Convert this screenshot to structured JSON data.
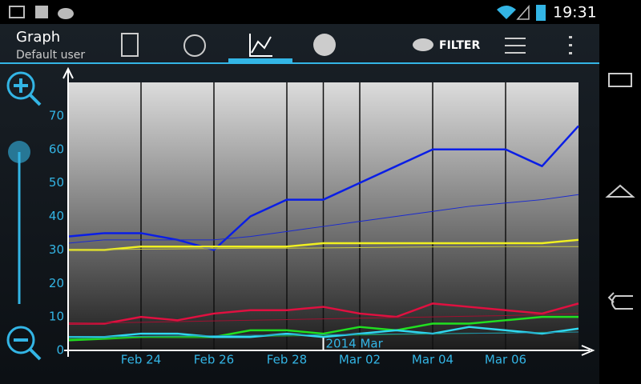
{
  "status_bar": {
    "time": "19:31"
  },
  "action_bar": {
    "title": "Graph",
    "subtitle": "Default user",
    "filter": "FILTER"
  },
  "chart_data": {
    "type": "line",
    "x": [
      "2014-02-22",
      "2014-02-23",
      "2014-02-24",
      "2014-02-25",
      "2014-02-26",
      "2014-02-27",
      "2014-02-28",
      "2014-03-01",
      "2014-03-02",
      "2014-03-03",
      "2014-03-04",
      "2014-03-05",
      "2014-03-06",
      "2014-03-07",
      "2014-03-08"
    ],
    "series": [
      {
        "color": "#0a1ee6",
        "width": 2.5,
        "values": [
          34,
          35,
          35,
          33,
          30,
          40,
          45,
          45,
          50,
          55,
          60,
          60,
          60,
          55,
          67
        ]
      },
      {
        "color": "#1a2ad0",
        "width": 1,
        "values": [
          32,
          33,
          33,
          33,
          33,
          34,
          35.5,
          37,
          38.5,
          40,
          41.5,
          43,
          44,
          45,
          46.5
        ]
      },
      {
        "color": "#f0f020",
        "width": 2.5,
        "values": [
          30,
          30,
          31,
          31,
          31,
          31,
          31,
          32,
          32,
          32,
          32,
          32,
          32,
          32,
          33
        ]
      },
      {
        "color": "#c8c840",
        "width": 1,
        "values": [
          30,
          30.1,
          30.2,
          30.3,
          30.4,
          30.5,
          30.5,
          30.6,
          30.7,
          30.8,
          30.9,
          30.9,
          31,
          31,
          31
        ]
      },
      {
        "color": "#e01040",
        "width": 2.5,
        "values": [
          8,
          8,
          10,
          9,
          11,
          12,
          12,
          13,
          11,
          10,
          14,
          13,
          12,
          11,
          14
        ]
      },
      {
        "color": "#a01030",
        "width": 1,
        "values": [
          8,
          8.2,
          8.4,
          8.6,
          8.8,
          9,
          9.2,
          9.4,
          9.6,
          9.8,
          10,
          10.2,
          10.4,
          10.7,
          11
        ]
      },
      {
        "color": "#20e020",
        "width": 2.5,
        "values": [
          3,
          3.5,
          4,
          4,
          4,
          6,
          6,
          5,
          7,
          6,
          8,
          8,
          9,
          10,
          10
        ]
      },
      {
        "color": "#20a020",
        "width": 1,
        "values": [
          3.5,
          3.6,
          3.8,
          3.9,
          4,
          4.2,
          4.3,
          4.5,
          4.6,
          4.8,
          4.9,
          5.1,
          5.2,
          5.4,
          5.5
        ]
      },
      {
        "color": "#30d8f0",
        "width": 2.5,
        "values": [
          4,
          4,
          5,
          5,
          4,
          4,
          5,
          4,
          5,
          6,
          5,
          7,
          6,
          5,
          6.5
        ]
      },
      {
        "color": "#2090b0",
        "width": 1,
        "values": [
          4,
          4.1,
          4.2,
          4.3,
          4.4,
          4.5,
          4.6,
          4.7,
          4.8,
          4.9,
          5,
          5.1,
          5.2,
          5.3,
          5.5
        ]
      }
    ],
    "xlim": [
      "2014-02-22",
      "2014-03-08"
    ],
    "xticks": [
      {
        "value": "2014-02-24",
        "label": "Feb 24"
      },
      {
        "value": "2014-02-26",
        "label": "Feb 26"
      },
      {
        "value": "2014-02-28",
        "label": "Feb 28"
      },
      {
        "value": "2014-03-02",
        "label": "Mar 02"
      },
      {
        "value": "2014-03-04",
        "label": "Mar 04"
      },
      {
        "value": "2014-03-06",
        "label": "Mar 06"
      }
    ],
    "ylim": [
      0,
      80
    ],
    "yticks": [
      0,
      10,
      20,
      30,
      40,
      50,
      60,
      70
    ],
    "grid": "x",
    "annotation": {
      "text": "2014 Mar",
      "x": "2014-03-01"
    }
  }
}
